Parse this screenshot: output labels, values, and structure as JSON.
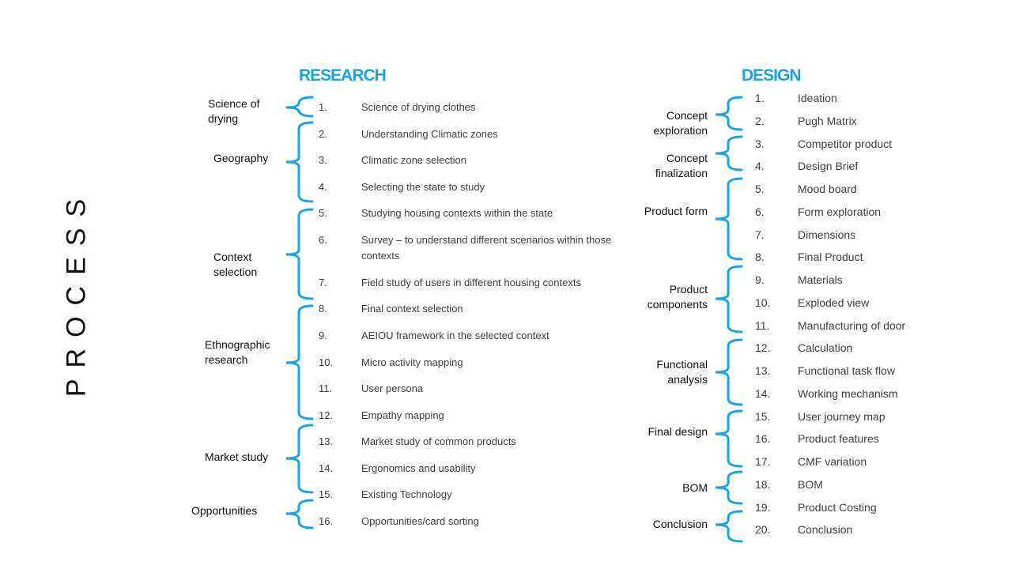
{
  "slide_title": "PROCESS",
  "research": {
    "heading": "RESEARCH",
    "groups": [
      "Science of drying",
      "Geography",
      "Context selection",
      "Ethnographic research",
      "Market study",
      "Opportunities"
    ],
    "items": [
      {
        "num": "1.",
        "text": "Science of drying clothes"
      },
      {
        "num": "2.",
        "text": "Understanding  Climatic zones"
      },
      {
        "num": "3.",
        "text": "Climatic zone selection"
      },
      {
        "num": "4.",
        "text": "Selecting the state to study"
      },
      {
        "num": "5.",
        "text": "Studying housing contexts within the state"
      },
      {
        "num": "6.",
        "text": "Survey – to understand different scenarios within those contexts"
      },
      {
        "num": "7.",
        "text": "Field study of users in different housing contexts"
      },
      {
        "num": "8.",
        "text": "Final context selection"
      },
      {
        "num": "9.",
        "text": "AEIOU framework in the selected context"
      },
      {
        "num": "10.",
        "text": "Micro activity mapping"
      },
      {
        "num": "11.",
        "text": "User persona"
      },
      {
        "num": "12.",
        "text": "Empathy mapping"
      },
      {
        "num": "13.",
        "text": "Market study of common products"
      },
      {
        "num": "14.",
        "text": "Ergonomics and usability"
      },
      {
        "num": "15.",
        "text": "Existing Technology"
      },
      {
        "num": "16.",
        "text": "Opportunities/card sorting"
      }
    ]
  },
  "design": {
    "heading": "DESIGN",
    "groups": [
      "Concept exploration",
      "Concept finalization",
      "Product form",
      "Product components",
      "Functional analysis",
      "Final design",
      "BOM",
      "Conclusion"
    ],
    "items": [
      {
        "num": "1.",
        "text": "Ideation"
      },
      {
        "num": "2.",
        "text": "Pugh Matrix"
      },
      {
        "num": "3.",
        "text": "Competitor product"
      },
      {
        "num": "4.",
        "text": "Design Brief"
      },
      {
        "num": "5.",
        "text": "Mood board"
      },
      {
        "num": "6.",
        "text": "Form exploration"
      },
      {
        "num": "7.",
        "text": "Dimensions"
      },
      {
        "num": "8.",
        "text": "Final Product"
      },
      {
        "num": "9.",
        "text": "Materials"
      },
      {
        "num": "10.",
        "text": "Exploded view"
      },
      {
        "num": "11.",
        "text": "Manufacturing of door"
      },
      {
        "num": "12.",
        "text": "Calculation"
      },
      {
        "num": "13.",
        "text": "Functional task flow"
      },
      {
        "num": "14.",
        "text": "Working mechanism"
      },
      {
        "num": "15.",
        "text": "User journey map"
      },
      {
        "num": "16.",
        "text": "Product features"
      },
      {
        "num": "17.",
        "text": "CMF variation"
      },
      {
        "num": "18.",
        "text": "BOM"
      },
      {
        "num": "19.",
        "text": "Product Costing"
      },
      {
        "num": "20.",
        "text": "Conclusion"
      }
    ]
  },
  "colors": {
    "accent": "#1aa3e0",
    "text": "#404040"
  }
}
